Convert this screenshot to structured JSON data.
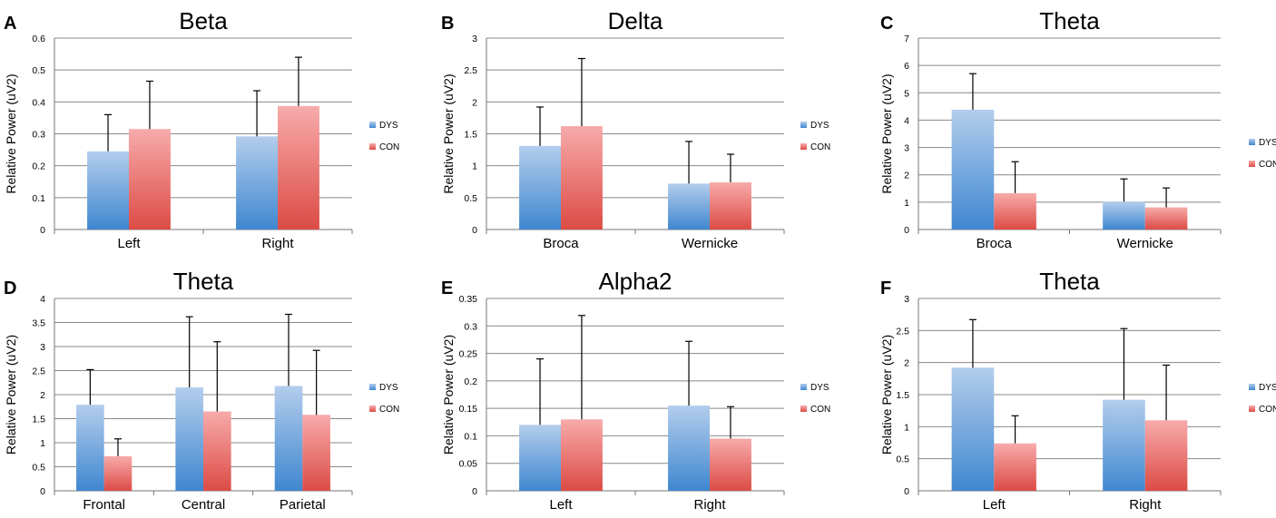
{
  "colors": {
    "dys_top": "#B3CDEC",
    "dys_bottom": "#3F87D0",
    "con_top": "#F7ABAB",
    "con_bottom": "#DC4B45",
    "grid": "#888888",
    "axis": "#777777",
    "error_bar": "#000000"
  },
  "chart_data": [
    {
      "panel": "A",
      "type": "bar",
      "title": "Beta",
      "ylabel": "Relative Power (uV2)",
      "xlabel": "",
      "ylim": [
        0,
        0.6
      ],
      "yticks": [
        0,
        0.1,
        0.2,
        0.3,
        0.4,
        0.5,
        0.6
      ],
      "ytick_labels": [
        "0",
        "0.1",
        "0.2",
        "0.3",
        "0.4",
        "0.5",
        "0.6"
      ],
      "categories": [
        "Left",
        "Right"
      ],
      "series": [
        {
          "name": "DYS",
          "values": [
            0.245,
            0.292
          ],
          "errors": [
            0.115,
            0.143
          ]
        },
        {
          "name": "CON",
          "values": [
            0.315,
            0.387
          ],
          "errors": [
            0.15,
            0.153
          ]
        }
      ],
      "legend": [
        "DYS",
        "CON"
      ],
      "legend_position": "right",
      "grid": true
    },
    {
      "panel": "B",
      "type": "bar",
      "title": "Delta",
      "ylabel": "Relative Power (uV2)",
      "xlabel": "",
      "ylim": [
        0,
        3
      ],
      "yticks": [
        0,
        0.5,
        1,
        1.5,
        2,
        2.5,
        3
      ],
      "ytick_labels": [
        "0",
        "0.5",
        "1",
        "1.5",
        "2",
        "2.5",
        "3"
      ],
      "categories": [
        "Broca",
        "Wernicke"
      ],
      "series": [
        {
          "name": "DYS",
          "values": [
            1.31,
            0.72
          ],
          "errors": [
            0.61,
            0.66
          ]
        },
        {
          "name": "CON",
          "values": [
            1.62,
            0.74
          ],
          "errors": [
            1.06,
            0.44
          ]
        }
      ],
      "legend": [
        "DYS",
        "CON"
      ],
      "legend_position": "right",
      "grid": true
    },
    {
      "panel": "C",
      "type": "bar",
      "title": "Theta",
      "ylabel": "Relative Power (uV2)",
      "xlabel": "",
      "ylim": [
        0,
        7
      ],
      "yticks": [
        0,
        1,
        2,
        3,
        4,
        5,
        6,
        7
      ],
      "ytick_labels": [
        "0",
        "1",
        "2",
        "3",
        "4",
        "5",
        "6",
        "7"
      ],
      "categories": [
        "Broca",
        "Wernicke"
      ],
      "series": [
        {
          "name": "DYS",
          "values": [
            4.38,
            1.02
          ],
          "errors": [
            1.32,
            0.83
          ]
        },
        {
          "name": "CON",
          "values": [
            1.33,
            0.81
          ],
          "errors": [
            1.15,
            0.71
          ]
        }
      ],
      "legend": [
        "DYS",
        "CON"
      ],
      "legend_position": "right",
      "grid": true
    },
    {
      "panel": "D",
      "type": "bar",
      "title": "Theta",
      "ylabel": "Relative Power (uV2)",
      "xlabel": "",
      "ylim": [
        0,
        4
      ],
      "yticks": [
        0,
        0.5,
        1,
        1.5,
        2,
        2.5,
        3,
        3.5,
        4
      ],
      "ytick_labels": [
        "0",
        "0.5",
        "1",
        "1.5",
        "2",
        "2.5",
        "3",
        "3.5",
        "4"
      ],
      "categories": [
        "Frontal",
        "Central",
        "Parietal"
      ],
      "series": [
        {
          "name": "DYS",
          "values": [
            1.79,
            2.15,
            2.18
          ],
          "errors": [
            0.73,
            1.47,
            1.49
          ]
        },
        {
          "name": "CON",
          "values": [
            0.72,
            1.65,
            1.58
          ],
          "errors": [
            0.36,
            1.45,
            1.34
          ]
        }
      ],
      "legend": [
        "DYS",
        "CON"
      ],
      "legend_position": "right",
      "grid": true
    },
    {
      "panel": "E",
      "type": "bar",
      "title": "Alpha2",
      "ylabel": "Relative Power (uV2)",
      "xlabel": "",
      "ylim": [
        0,
        0.35
      ],
      "yticks": [
        0,
        0.05,
        0.1,
        0.15,
        0.2,
        0.25,
        0.3,
        0.35
      ],
      "ytick_labels": [
        "0",
        "0.05",
        "0.1",
        "0.15",
        "0.2",
        "0.25",
        "0.3",
        "0.35"
      ],
      "categories": [
        "Left",
        "Right"
      ],
      "series": [
        {
          "name": "DYS",
          "values": [
            0.12,
            0.155
          ],
          "errors": [
            0.12,
            0.117
          ]
        },
        {
          "name": "CON",
          "values": [
            0.13,
            0.095
          ],
          "errors": [
            0.189,
            0.058
          ]
        }
      ],
      "legend": [
        "DYS",
        "CON"
      ],
      "legend_position": "right",
      "grid": true
    },
    {
      "panel": "F",
      "type": "bar",
      "title": "Theta",
      "ylabel": "Relative Power (uV2)",
      "xlabel": "",
      "ylim": [
        0,
        3
      ],
      "yticks": [
        0,
        0.5,
        1,
        1.5,
        2,
        2.5,
        3
      ],
      "ytick_labels": [
        "0",
        "0.5",
        "1",
        "1.5",
        "2",
        "2.5",
        "3"
      ],
      "categories": [
        "Left",
        "Right"
      ],
      "series": [
        {
          "name": "DYS",
          "values": [
            1.92,
            1.42
          ],
          "errors": [
            0.75,
            1.11
          ]
        },
        {
          "name": "CON",
          "values": [
            0.74,
            1.1
          ],
          "errors": [
            0.43,
            0.86
          ]
        }
      ],
      "legend": [
        "DYS",
        "CON"
      ],
      "legend_position": "right",
      "grid": true
    }
  ]
}
